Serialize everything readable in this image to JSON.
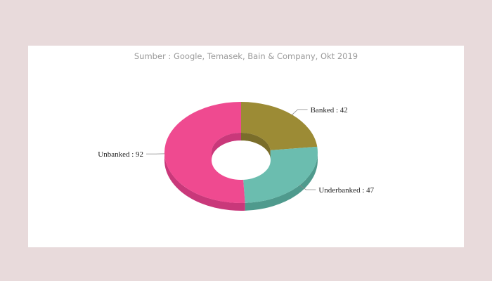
{
  "chart_data": {
    "type": "pie",
    "subtitle": "Sumber : Google, Temasek, Bain & Company, Okt 2019",
    "categories": [
      "Banked",
      "Underbanked",
      "Unbanked"
    ],
    "values": [
      42,
      47,
      92
    ],
    "labels": [
      "Banked : 42",
      "Underbanked : 47",
      "Unbanked : 92"
    ],
    "colors": [
      "#9c8b35",
      "#6bbdaf",
      "#ef4a90"
    ],
    "side_colors": [
      "#7a6d2a",
      "#4f9a8d",
      "#c9387a"
    ],
    "donut": true,
    "three_d": true
  }
}
